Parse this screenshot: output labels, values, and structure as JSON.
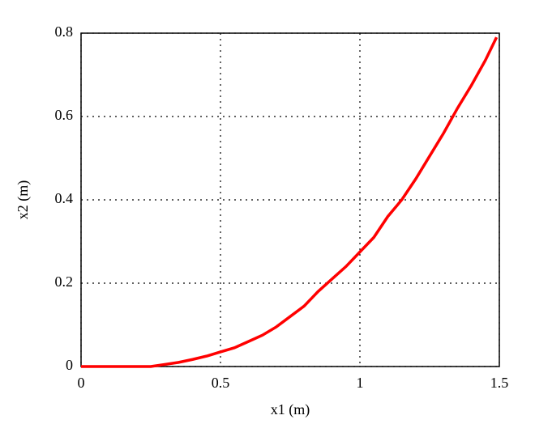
{
  "chart_data": {
    "type": "line",
    "x_label": "x1 (m)",
    "y_label": "x2 (m)",
    "series": [
      {
        "color": "#ff0000",
        "x": [
          0,
          0.05,
          0.1,
          0.15,
          0.2,
          0.25,
          0.3,
          0.35,
          0.4,
          0.45,
          0.5,
          0.55,
          0.6,
          0.65,
          0.7,
          0.75,
          0.8,
          0.85,
          0.9,
          0.95,
          1.0,
          1.05,
          1.1,
          1.15,
          1.2,
          1.25,
          1.3,
          1.35,
          1.4,
          1.45,
          1.49
        ],
        "values": [
          0,
          0,
          0,
          0,
          0,
          0,
          0.005,
          0.01,
          0.017,
          0.025,
          0.035,
          0.045,
          0.06,
          0.075,
          0.095,
          0.12,
          0.145,
          0.18,
          0.21,
          0.24,
          0.275,
          0.31,
          0.36,
          0.4,
          0.45,
          0.505,
          0.56,
          0.62,
          0.675,
          0.735,
          0.79
        ]
      }
    ],
    "xlim": [
      0,
      1.5
    ],
    "xticks": [
      0,
      0.5,
      1,
      1.5
    ],
    "ylim": [
      0,
      0.8
    ],
    "yticks": [
      0,
      0.2,
      0.4,
      0.6,
      0.8
    ],
    "grid": true
  }
}
